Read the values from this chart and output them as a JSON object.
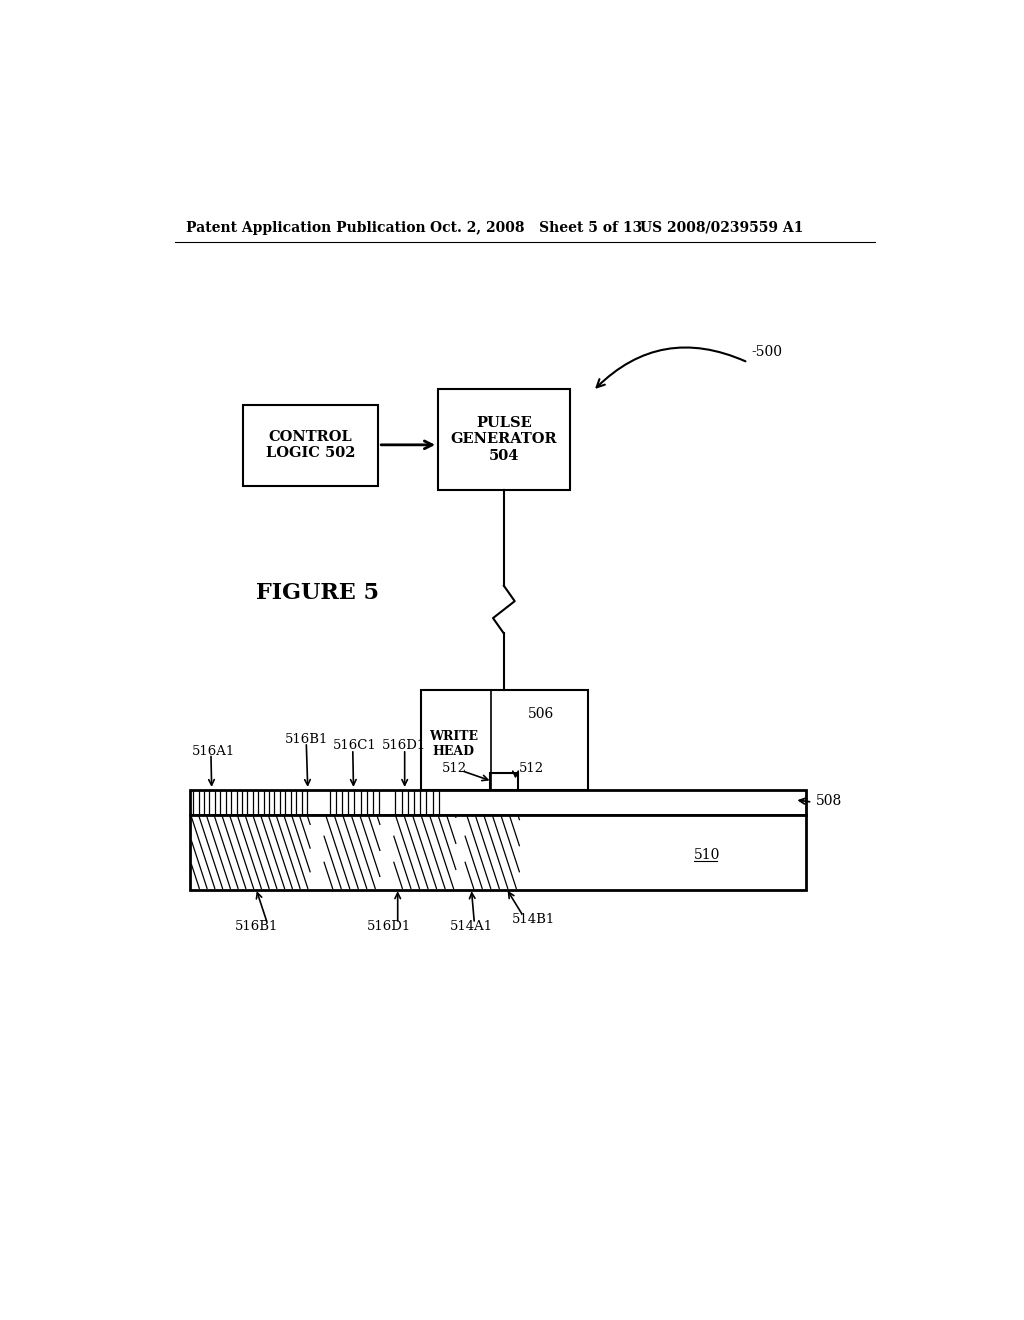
{
  "bg_color": "#ffffff",
  "header_left": "Patent Application Publication",
  "header_mid": "Oct. 2, 2008   Sheet 5 of 13",
  "header_right": "US 2008/0239559 A1",
  "figure_label": "FIGURE 5",
  "ref_500": "-500",
  "control_logic_label": "CONTROL\nLOGIC 502",
  "pulse_gen_label": "PULSE\nGENERATOR\n504",
  "write_head_label": "WRITE\nHEAD",
  "ref_506": "506",
  "ref_508": "508",
  "ref_510": "510",
  "ref_512a": "512",
  "ref_512b": "512",
  "ref_516A1": "516A1",
  "ref_516B1_top": "516B1",
  "ref_516C1": "516C1",
  "ref_516D1_top": "516D1",
  "ref_516B1_bot": "516B1",
  "ref_516D1_bot": "516D1",
  "ref_514A1": "514A1",
  "ref_514B1": "514B1"
}
